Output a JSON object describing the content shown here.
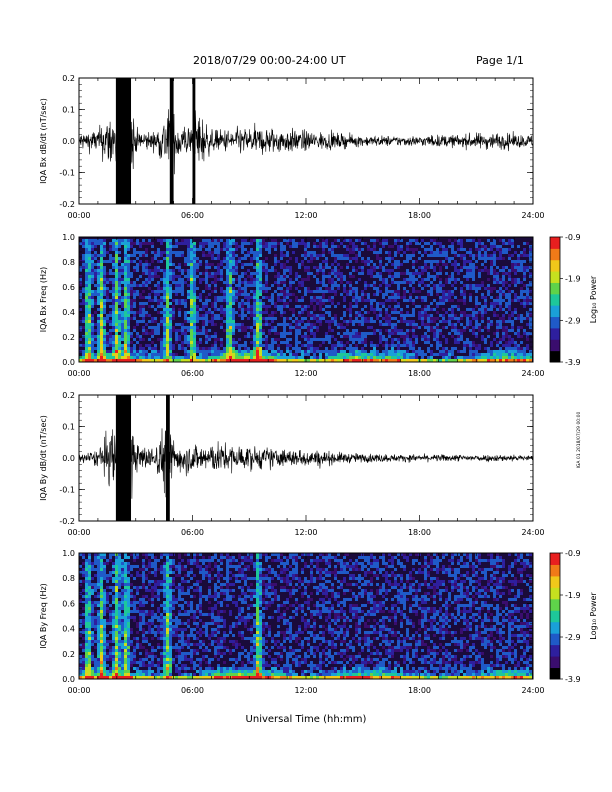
{
  "header": {
    "title": "2018/07/29  00:00-24:00 UT",
    "page": "Page 1/1"
  },
  "footer": {
    "xlabel": "Universal Time (hh:mm)",
    "stamp": "IGA 01 2018/07/29 00:00"
  },
  "colorbar_ticks": [
    "-0.9",
    "-1.9",
    "-2.9",
    "-3.9"
  ],
  "colorbar_label": "Log₁₀ Power",
  "colormap": [
    "#000000",
    "#3a0d6e",
    "#2e1f9e",
    "#1f5ac8",
    "#1aa0d8",
    "#1ec79a",
    "#5fd34a",
    "#c6e01f",
    "#f0c81a",
    "#f07a18",
    "#e81f1f"
  ],
  "chart_data": [
    {
      "type": "line",
      "ylabel": "IQA Bx dB/dt (nT/sec)",
      "xlim_hours": [
        0,
        24
      ],
      "ylim": [
        -0.2,
        0.2
      ],
      "x_ticks": [
        "00:00",
        "06:00",
        "12:00",
        "18:00",
        "24:00"
      ],
      "y_ticks": [
        "0.2",
        "0.1",
        "0.0",
        "-0.1",
        "-0.2"
      ],
      "envelope": {
        "hours": [
          0,
          1,
          1.9,
          2.0,
          2.8,
          3,
          4,
          4.8,
          5.2,
          6,
          6.2,
          7,
          8,
          9,
          10,
          11,
          12,
          13,
          14,
          15,
          16,
          17,
          18,
          19,
          20,
          21,
          22,
          23,
          24
        ],
        "amplitude": [
          0.05,
          0.07,
          0.2,
          0.25,
          0.22,
          0.07,
          0.05,
          0.2,
          0.12,
          0.08,
          0.2,
          0.06,
          0.07,
          0.08,
          0.08,
          0.07,
          0.06,
          0.05,
          0.04,
          0.03,
          0.03,
          0.03,
          0.03,
          0.035,
          0.035,
          0.045,
          0.05,
          0.04,
          0.035
        ]
      }
    },
    {
      "type": "heatmap",
      "ylabel": "IQA Bx Freq (Hz)",
      "xlim_hours": [
        0,
        24
      ],
      "ylim": [
        0.0,
        1.0
      ],
      "x_ticks": [
        "00:00",
        "06:00",
        "12:00",
        "18:00",
        "24:00"
      ],
      "y_ticks": [
        "1.0",
        "0.8",
        "0.6",
        "0.4",
        "0.2",
        "0.0"
      ],
      "color_range": [
        -3.9,
        -0.9
      ],
      "bursts_hours": [
        0.5,
        1.2,
        2.0,
        2.5,
        4.7,
        6.0,
        8.0,
        9.5
      ],
      "low_freq_band_hz": 0.12
    },
    {
      "type": "line",
      "ylabel": "IQA By dB/dt (nT/sec)",
      "xlim_hours": [
        0,
        24
      ],
      "ylim": [
        -0.2,
        0.2
      ],
      "x_ticks": [
        "00:00",
        "06:00",
        "12:00",
        "18:00",
        "24:00"
      ],
      "y_ticks": [
        "0.2",
        "0.1",
        "0.0",
        "-0.1",
        "-0.2"
      ],
      "envelope": {
        "hours": [
          0,
          1,
          1.9,
          2.0,
          2.8,
          3,
          4,
          4.7,
          5.0,
          6,
          7,
          8,
          9,
          10,
          11,
          12,
          13,
          14,
          15,
          16,
          17,
          18,
          19,
          20,
          21,
          22,
          23,
          24
        ],
        "amplitude": [
          0.02,
          0.05,
          0.2,
          0.25,
          0.22,
          0.08,
          0.06,
          0.25,
          0.1,
          0.08,
          0.09,
          0.08,
          0.07,
          0.06,
          0.05,
          0.05,
          0.04,
          0.03,
          0.025,
          0.025,
          0.02,
          0.02,
          0.02,
          0.02,
          0.02,
          0.02,
          0.02,
          0.015
        ]
      }
    },
    {
      "type": "heatmap",
      "ylabel": "IQA By Freq (Hz)",
      "xlim_hours": [
        0,
        24
      ],
      "ylim": [
        0.0,
        1.0
      ],
      "x_ticks": [
        "00:00",
        "06:00",
        "12:00",
        "18:00",
        "24:00"
      ],
      "y_ticks": [
        "1.0",
        "0.8",
        "0.6",
        "0.4",
        "0.2",
        "0.0"
      ],
      "color_range": [
        -3.9,
        -0.9
      ],
      "bursts_hours": [
        0.5,
        1.2,
        2.0,
        2.5,
        4.7,
        9.5
      ],
      "low_freq_band_hz": 0.1
    }
  ]
}
